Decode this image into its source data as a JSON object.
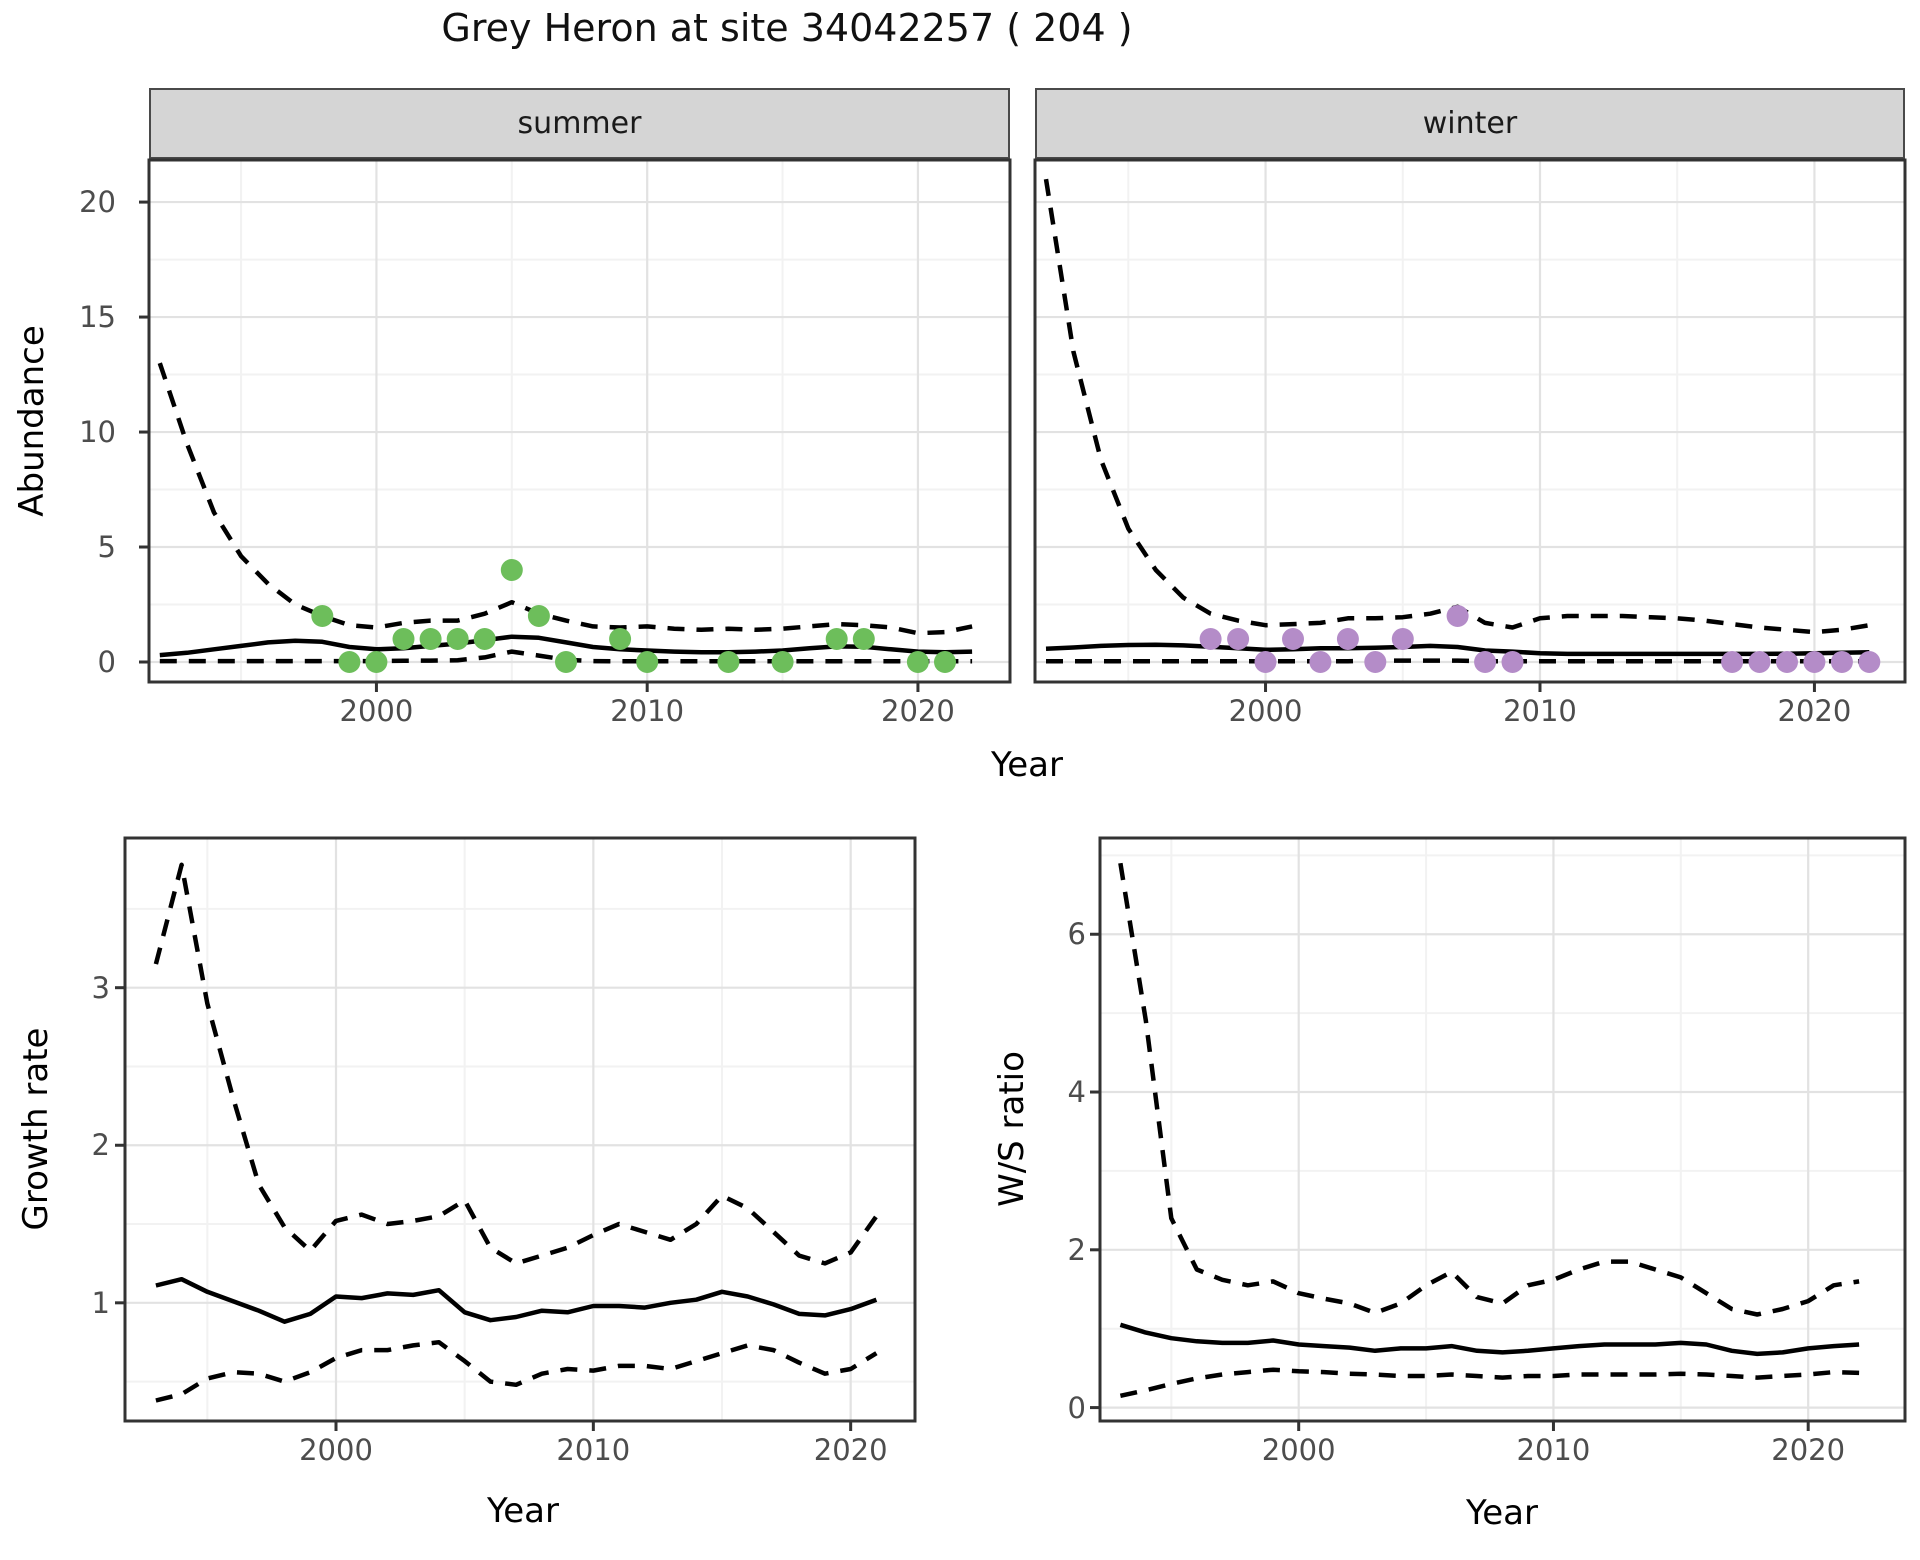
{
  "title": "Grey Heron at site 34042257 ( 204 )",
  "colors": {
    "summer_point": "#6dbe5b",
    "winter_point": "#b48cc8",
    "line": "#000000",
    "grid_major": "#e2e2e2",
    "grid_minor": "#f2f2f2",
    "strip_bg": "#d5d5d5",
    "panel_border": "#333333",
    "tick_text": "#4d4d4d"
  },
  "chart_data": [
    {
      "id": "abundance-summer",
      "type": "line",
      "facet_label": "summer",
      "xlabel": "Year",
      "ylabel": "Abundance",
      "xlim": [
        1991.6,
        2023.4
      ],
      "ylim": [
        -0.87,
        21.83
      ],
      "x_major_ticks": [
        2000,
        2010,
        2020
      ],
      "x_minor_ticks": [
        1995,
        2005,
        2015
      ],
      "y_major_ticks": [
        0,
        5,
        10,
        15,
        20
      ],
      "y_minor_ticks": [
        2.5,
        7.5,
        12.5,
        17.5
      ],
      "grid": true,
      "legend": "none",
      "series": [
        {
          "name": "estimate",
          "style": "solid",
          "x": [
            1992,
            1993,
            1994,
            1995,
            1996,
            1997,
            1998,
            1999,
            2000,
            2001,
            2002,
            2003,
            2004,
            2005,
            2006,
            2007,
            2008,
            2009,
            2010,
            2011,
            2012,
            2013,
            2014,
            2015,
            2016,
            2017,
            2018,
            2019,
            2020,
            2021,
            2022
          ],
          "y": [
            0.3,
            0.4,
            0.55,
            0.7,
            0.85,
            0.92,
            0.88,
            0.65,
            0.55,
            0.6,
            0.7,
            0.8,
            0.95,
            1.1,
            1.05,
            0.85,
            0.65,
            0.55,
            0.5,
            0.45,
            0.42,
            0.42,
            0.45,
            0.5,
            0.6,
            0.68,
            0.66,
            0.55,
            0.45,
            0.42,
            0.45
          ]
        },
        {
          "name": "upper_ci",
          "style": "dashed",
          "x": [
            1992,
            1993,
            1994,
            1995,
            1996,
            1997,
            1998,
            1999,
            2000,
            2001,
            2002,
            2003,
            2004,
            2005,
            2006,
            2007,
            2008,
            2009,
            2010,
            2011,
            2012,
            2013,
            2014,
            2015,
            2016,
            2017,
            2018,
            2019,
            2020,
            2021,
            2022
          ],
          "y": [
            13.0,
            9.5,
            6.5,
            4.6,
            3.4,
            2.5,
            2.0,
            1.6,
            1.5,
            1.7,
            1.8,
            1.8,
            2.1,
            2.6,
            2.1,
            1.8,
            1.55,
            1.5,
            1.55,
            1.45,
            1.4,
            1.45,
            1.4,
            1.45,
            1.55,
            1.65,
            1.6,
            1.5,
            1.25,
            1.3,
            1.55
          ]
        },
        {
          "name": "lower_ci",
          "style": "dashed",
          "x": [
            1992,
            1993,
            1994,
            1995,
            1996,
            1997,
            1998,
            1999,
            2000,
            2001,
            2002,
            2003,
            2004,
            2005,
            2006,
            2007,
            2008,
            2009,
            2010,
            2011,
            2012,
            2013,
            2014,
            2015,
            2016,
            2017,
            2018,
            2019,
            2020,
            2021,
            2022
          ],
          "y": [
            0.04,
            0.04,
            0.04,
            0.04,
            0.04,
            0.04,
            0.04,
            0.04,
            0.04,
            0.05,
            0.06,
            0.08,
            0.2,
            0.45,
            0.28,
            0.1,
            0.04,
            0.03,
            0.03,
            0.03,
            0.03,
            0.03,
            0.03,
            0.03,
            0.03,
            0.03,
            0.03,
            0.03,
            0.03,
            0.03,
            0.03
          ]
        }
      ],
      "points": {
        "name": "observed-counts-summer",
        "color_key": "summer_point",
        "x": [
          1998,
          1999,
          2000,
          2001,
          2002,
          2003,
          2004,
          2005,
          2006,
          2007,
          2009,
          2010,
          2013,
          2015,
          2017,
          2018,
          2020,
          2021
        ],
        "y": [
          2,
          0,
          0,
          1,
          1,
          1,
          1,
          4,
          2,
          0,
          1,
          0,
          0,
          0,
          1,
          1,
          0,
          0
        ]
      }
    },
    {
      "id": "abundance-winter",
      "type": "line",
      "facet_label": "winter",
      "xlabel": "Year",
      "ylabel": "Abundance",
      "xlim": [
        1991.6,
        2023.3
      ],
      "ylim": [
        -0.87,
        21.83
      ],
      "x_major_ticks": [
        2000,
        2010,
        2020
      ],
      "x_minor_ticks": [
        1995,
        2005,
        2015
      ],
      "y_major_ticks": [
        0,
        5,
        10,
        15,
        20
      ],
      "y_minor_ticks": [
        2.5,
        7.5,
        12.5,
        17.5
      ],
      "grid": true,
      "legend": "none",
      "series": [
        {
          "name": "estimate",
          "style": "solid",
          "x": [
            1992,
            1993,
            1994,
            1995,
            1996,
            1997,
            1998,
            1999,
            2000,
            2001,
            2002,
            2003,
            2004,
            2005,
            2006,
            2007,
            2008,
            2009,
            2010,
            2011,
            2012,
            2013,
            2014,
            2015,
            2016,
            2017,
            2018,
            2019,
            2020,
            2021,
            2022
          ],
          "y": [
            0.58,
            0.63,
            0.7,
            0.74,
            0.75,
            0.72,
            0.66,
            0.6,
            0.53,
            0.55,
            0.6,
            0.6,
            0.62,
            0.65,
            0.7,
            0.65,
            0.5,
            0.45,
            0.38,
            0.35,
            0.35,
            0.35,
            0.35,
            0.35,
            0.35,
            0.35,
            0.35,
            0.36,
            0.38,
            0.4,
            0.42
          ]
        },
        {
          "name": "upper_ci",
          "style": "dashed",
          "x": [
            1992,
            1993,
            1994,
            1995,
            1996,
            1997,
            1998,
            1999,
            2000,
            2001,
            2002,
            2003,
            2004,
            2005,
            2006,
            2007,
            2008,
            2009,
            2010,
            2011,
            2012,
            2013,
            2014,
            2015,
            2016,
            2017,
            2018,
            2019,
            2020,
            2021,
            2022
          ],
          "y": [
            21.0,
            13.5,
            8.8,
            5.8,
            4.0,
            2.8,
            2.1,
            1.8,
            1.6,
            1.65,
            1.7,
            1.9,
            1.9,
            1.95,
            2.1,
            2.4,
            1.7,
            1.5,
            1.9,
            2.0,
            2.0,
            2.0,
            1.95,
            1.9,
            1.8,
            1.65,
            1.5,
            1.4,
            1.3,
            1.4,
            1.6
          ]
        },
        {
          "name": "lower_ci",
          "style": "dashed",
          "x": [
            1992,
            1993,
            1994,
            1995,
            1996,
            1997,
            1998,
            1999,
            2000,
            2001,
            2002,
            2003,
            2004,
            2005,
            2006,
            2007,
            2008,
            2009,
            2010,
            2011,
            2012,
            2013,
            2014,
            2015,
            2016,
            2017,
            2018,
            2019,
            2020,
            2021,
            2022
          ],
          "y": [
            0.03,
            0.03,
            0.03,
            0.03,
            0.03,
            0.03,
            0.03,
            0.03,
            0.03,
            0.03,
            0.03,
            0.03,
            0.06,
            0.06,
            0.06,
            0.06,
            0.03,
            0.03,
            0.03,
            0.03,
            0.03,
            0.03,
            0.03,
            0.03,
            0.03,
            0.03,
            0.03,
            0.03,
            0.03,
            0.03,
            0.03
          ]
        }
      ],
      "points": {
        "name": "observed-counts-winter",
        "color_key": "winter_point",
        "x": [
          1998,
          1999,
          2000,
          2001,
          2002,
          2003,
          2004,
          2005,
          2007,
          2008,
          2009,
          2017,
          2018,
          2019,
          2020,
          2021,
          2022
        ],
        "y": [
          1,
          1,
          0,
          1,
          0,
          1,
          0,
          1,
          2,
          0,
          0,
          0,
          0,
          0,
          0,
          0,
          0
        ]
      }
    },
    {
      "id": "growth-rate",
      "type": "line",
      "facet_label": "",
      "xlabel": "Year",
      "ylabel": "Growth rate",
      "xlim": [
        1991.8,
        2022.5
      ],
      "ylim": [
        0.25,
        3.95
      ],
      "x_major_ticks": [
        2000,
        2010,
        2020
      ],
      "x_minor_ticks": [
        1995,
        2005,
        2015
      ],
      "y_major_ticks": [
        1,
        2,
        3
      ],
      "y_minor_ticks": [
        0.5,
        1.5,
        2.5,
        3.5
      ],
      "grid": true,
      "legend": "none",
      "series": [
        {
          "name": "estimate",
          "style": "solid",
          "x": [
            1993,
            1994,
            1995,
            1996,
            1997,
            1998,
            1999,
            2000,
            2001,
            2002,
            2003,
            2004,
            2005,
            2006,
            2007,
            2008,
            2009,
            2010,
            2011,
            2012,
            2013,
            2014,
            2015,
            2016,
            2017,
            2018,
            2019,
            2020,
            2021
          ],
          "y": [
            1.11,
            1.15,
            1.07,
            1.01,
            0.95,
            0.88,
            0.93,
            1.04,
            1.03,
            1.06,
            1.05,
            1.08,
            0.94,
            0.89,
            0.91,
            0.95,
            0.94,
            0.98,
            0.98,
            0.97,
            1.0,
            1.02,
            1.07,
            1.04,
            0.99,
            0.93,
            0.92,
            0.96,
            1.02
          ]
        },
        {
          "name": "upper_ci",
          "style": "dashed",
          "x": [
            1993,
            1994,
            1995,
            1996,
            1997,
            1998,
            1999,
            2000,
            2001,
            2002,
            2003,
            2004,
            2005,
            2006,
            2007,
            2008,
            2009,
            2010,
            2011,
            2012,
            2013,
            2014,
            2015,
            2016,
            2017,
            2018,
            2019,
            2020,
            2021
          ],
          "y": [
            3.15,
            3.78,
            2.9,
            2.3,
            1.75,
            1.48,
            1.33,
            1.52,
            1.56,
            1.5,
            1.52,
            1.55,
            1.65,
            1.35,
            1.25,
            1.3,
            1.35,
            1.43,
            1.5,
            1.45,
            1.4,
            1.5,
            1.68,
            1.6,
            1.45,
            1.3,
            1.25,
            1.32,
            1.55
          ]
        },
        {
          "name": "lower_ci",
          "style": "dashed",
          "x": [
            1993,
            1994,
            1995,
            1996,
            1997,
            1998,
            1999,
            2000,
            2001,
            2002,
            2003,
            2004,
            2005,
            2006,
            2007,
            2008,
            2009,
            2010,
            2011,
            2012,
            2013,
            2014,
            2015,
            2016,
            2017,
            2018,
            2019,
            2020,
            2021
          ],
          "y": [
            0.38,
            0.42,
            0.52,
            0.56,
            0.55,
            0.5,
            0.56,
            0.65,
            0.7,
            0.7,
            0.73,
            0.75,
            0.63,
            0.5,
            0.48,
            0.55,
            0.58,
            0.57,
            0.6,
            0.6,
            0.58,
            0.63,
            0.68,
            0.73,
            0.7,
            0.62,
            0.55,
            0.58,
            0.68
          ]
        }
      ],
      "points": null
    },
    {
      "id": "ws-ratio",
      "type": "line",
      "facet_label": "",
      "xlabel": "Year",
      "ylabel": "W/S ratio",
      "xlim": [
        1992.2,
        2023.8
      ],
      "ylim": [
        -0.17,
        7.22
      ],
      "x_major_ticks": [
        2000,
        2010,
        2020
      ],
      "x_minor_ticks": [
        1995,
        2005,
        2015
      ],
      "y_major_ticks": [
        0,
        2,
        4,
        6
      ],
      "y_minor_ticks": [
        1,
        3,
        5,
        7
      ],
      "grid": true,
      "legend": "none",
      "series": [
        {
          "name": "estimate",
          "style": "solid",
          "x": [
            1993,
            1994,
            1995,
            1996,
            1997,
            1998,
            1999,
            2000,
            2001,
            2002,
            2003,
            2004,
            2005,
            2006,
            2007,
            2008,
            2009,
            2010,
            2011,
            2012,
            2013,
            2014,
            2015,
            2016,
            2017,
            2018,
            2019,
            2020,
            2021,
            2022
          ],
          "y": [
            1.05,
            0.95,
            0.88,
            0.84,
            0.82,
            0.82,
            0.85,
            0.8,
            0.78,
            0.76,
            0.72,
            0.75,
            0.75,
            0.78,
            0.72,
            0.7,
            0.72,
            0.75,
            0.78,
            0.8,
            0.8,
            0.8,
            0.82,
            0.8,
            0.72,
            0.68,
            0.7,
            0.75,
            0.78,
            0.8
          ]
        },
        {
          "name": "upper_ci",
          "style": "dashed",
          "x": [
            1993,
            1994,
            1995,
            1996,
            1997,
            1998,
            1999,
            2000,
            2001,
            2002,
            2003,
            2004,
            2005,
            2006,
            2007,
            2008,
            2009,
            2010,
            2011,
            2012,
            2013,
            2014,
            2015,
            2016,
            2017,
            2018,
            2019,
            2020,
            2021,
            2022
          ],
          "y": [
            6.9,
            4.9,
            2.4,
            1.75,
            1.62,
            1.55,
            1.6,
            1.45,
            1.38,
            1.32,
            1.2,
            1.32,
            1.55,
            1.72,
            1.4,
            1.32,
            1.55,
            1.62,
            1.75,
            1.85,
            1.85,
            1.75,
            1.65,
            1.45,
            1.25,
            1.18,
            1.25,
            1.35,
            1.55,
            1.6
          ]
        },
        {
          "name": "lower_ci",
          "style": "dashed",
          "x": [
            1993,
            1994,
            1995,
            1996,
            1997,
            1998,
            1999,
            2000,
            2001,
            2002,
            2003,
            2004,
            2005,
            2006,
            2007,
            2008,
            2009,
            2010,
            2011,
            2012,
            2013,
            2014,
            2015,
            2016,
            2017,
            2018,
            2019,
            2020,
            2021,
            2022
          ],
          "y": [
            0.15,
            0.22,
            0.3,
            0.37,
            0.42,
            0.45,
            0.48,
            0.46,
            0.45,
            0.43,
            0.42,
            0.4,
            0.4,
            0.42,
            0.4,
            0.38,
            0.4,
            0.4,
            0.42,
            0.42,
            0.42,
            0.42,
            0.43,
            0.42,
            0.4,
            0.38,
            0.4,
            0.42,
            0.45,
            0.44
          ]
        }
      ],
      "points": null
    }
  ]
}
